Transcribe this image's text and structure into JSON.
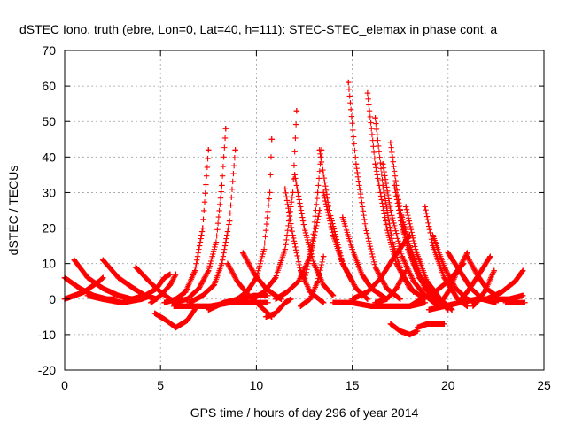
{
  "chart_data": {
    "type": "scatter",
    "title": "dSTEC Iono. truth (ebre, Lon=0, Lat=40, h=111): STEC-STEC_elemax in phase cont. a",
    "xlabel": "GPS time / hours of day 296 of year 2014",
    "ylabel": "dSTEC  / TECUs",
    "xlim": [
      0,
      25
    ],
    "ylim": [
      -20,
      70
    ],
    "xticks": [
      0,
      5,
      10,
      15,
      20,
      25
    ],
    "yticks": [
      -20,
      -10,
      0,
      10,
      20,
      30,
      40,
      50,
      60,
      70
    ],
    "grid": true,
    "marker": "+",
    "color": "#ff0000",
    "series": [
      {
        "x": [
          0.0,
          0.8,
          1.5,
          2.2,
          2.6
        ],
        "y": [
          6,
          3,
          1,
          0,
          0
        ]
      },
      {
        "x": [
          0.0,
          1.0,
          1.8,
          2.0
        ],
        "y": [
          0,
          2,
          5,
          6
        ]
      },
      {
        "x": [
          0.5,
          1.2,
          2.0,
          2.8,
          3.5
        ],
        "y": [
          11,
          6,
          3,
          1,
          0
        ]
      },
      {
        "x": [
          1.2,
          2.0,
          3.0,
          4.0,
          4.5
        ],
        "y": [
          1,
          0,
          -1,
          0,
          1
        ]
      },
      {
        "x": [
          2.0,
          2.8,
          3.6,
          4.2,
          4.8
        ],
        "y": [
          11,
          6,
          3,
          1,
          0
        ]
      },
      {
        "x": [
          3.5,
          4.2,
          4.8,
          5.2,
          5.5
        ],
        "y": [
          0,
          1,
          3,
          6,
          7
        ]
      },
      {
        "x": [
          3.7,
          4.4,
          5.0,
          5.5,
          5.8
        ],
        "y": [
          9,
          5,
          2,
          0,
          -1
        ]
      },
      {
        "x": [
          4.5,
          5.0,
          5.5,
          5.8
        ],
        "y": [
          -1,
          1,
          4,
          7
        ]
      },
      {
        "x": [
          4.7,
          5.3,
          5.8,
          6.4,
          6.9
        ],
        "y": [
          -4,
          -6,
          -8,
          -6,
          -2
        ]
      },
      {
        "x": [
          5.2,
          5.8,
          6.3,
          6.8,
          7.2,
          7.5
        ],
        "y": [
          -1,
          0,
          2,
          8,
          20,
          42
        ]
      },
      {
        "x": [
          5.6,
          6.4,
          7.0,
          7.5,
          7.9,
          8.2,
          8.4
        ],
        "y": [
          -1,
          0,
          3,
          8,
          16,
          32,
          48
        ]
      },
      {
        "x": [
          6.5,
          7.2,
          7.8,
          8.2,
          8.6,
          8.9
        ],
        "y": [
          -1,
          1,
          4,
          10,
          22,
          42
        ]
      },
      {
        "x": [
          5.7,
          6.6,
          7.6,
          8.6,
          9.6,
          10.6
        ],
        "y": [
          -2,
          -2,
          -2,
          -1,
          -1,
          -1
        ]
      },
      {
        "x": [
          7.5,
          8.3,
          9.1,
          9.9,
          10.6
        ],
        "y": [
          -3,
          -1,
          0,
          1,
          1
        ]
      },
      {
        "x": [
          8.5,
          9.0,
          9.5,
          10.0,
          10.4,
          10.7,
          10.8
        ],
        "y": [
          -1,
          0,
          2,
          6,
          14,
          30,
          45
        ]
      },
      {
        "x": [
          8.5,
          9.0,
          9.6,
          10.2,
          10.8
        ],
        "y": [
          10,
          5,
          1,
          -2,
          -5
        ]
      },
      {
        "x": [
          9.3,
          9.9,
          10.5,
          11.0,
          11.3
        ],
        "y": [
          13,
          7,
          3,
          1,
          0
        ]
      },
      {
        "x": [
          9.8,
          10.4,
          11.0,
          11.5,
          11.9,
          12.1
        ],
        "y": [
          0,
          2,
          6,
          14,
          30,
          53
        ]
      },
      {
        "x": [
          10.5,
          11.0,
          11.5,
          11.8
        ],
        "y": [
          -5,
          -4,
          -1,
          0
        ]
      },
      {
        "x": [
          11.0,
          11.6,
          12.2,
          12.8,
          13.3
        ],
        "y": [
          0,
          2,
          5,
          12,
          25
        ]
      },
      {
        "x": [
          11.5,
          11.9,
          12.3,
          12.8,
          13.5
        ],
        "y": [
          31,
          18,
          8,
          2,
          -1
        ]
      },
      {
        "x": [
          12.0,
          12.5,
          13.0,
          13.5,
          14.0
        ],
        "y": [
          35,
          20,
          10,
          4,
          1
        ]
      },
      {
        "x": [
          12.3,
          12.8,
          13.2,
          13.5
        ],
        "y": [
          -2,
          0,
          5,
          12
        ]
      },
      {
        "x": [
          12.5,
          12.9,
          13.2,
          13.4
        ],
        "y": [
          5,
          15,
          30,
          42
        ]
      },
      {
        "x": [
          13.3,
          13.8,
          14.5,
          15.2,
          15.8
        ],
        "y": [
          42,
          25,
          10,
          3,
          0
        ]
      },
      {
        "x": [
          13.5,
          14.0,
          14.5,
          15.0
        ],
        "y": [
          30,
          18,
          10,
          5
        ]
      },
      {
        "x": [
          14.0,
          15.0,
          16.0,
          17.0,
          18.0,
          18.8
        ],
        "y": [
          -1,
          -1,
          -2,
          -2,
          -2,
          -1
        ]
      },
      {
        "x": [
          14.5,
          15.0,
          15.5,
          16.0,
          16.8
        ],
        "y": [
          23,
          14,
          7,
          3,
          0
        ]
      },
      {
        "x": [
          14.8,
          15.2,
          15.7,
          16.2,
          16.8,
          17.5
        ],
        "y": [
          61,
          38,
          20,
          9,
          3,
          0
        ]
      },
      {
        "x": [
          15.0,
          15.8,
          16.5,
          17.2,
          18.0
        ],
        "y": [
          0,
          2,
          6,
          12,
          18
        ]
      },
      {
        "x": [
          15.8,
          16.2,
          16.8,
          17.3,
          18.0,
          18.8
        ],
        "y": [
          58,
          38,
          20,
          10,
          3,
          0
        ]
      },
      {
        "x": [
          16.2,
          16.6,
          17.1,
          17.6,
          18.2
        ],
        "y": [
          51,
          32,
          16,
          7,
          2
        ]
      },
      {
        "x": [
          16.2,
          16.8,
          17.3,
          17.8
        ],
        "y": [
          -1,
          0,
          3,
          8
        ]
      },
      {
        "x": [
          16.6,
          17.0,
          17.6,
          18.2,
          18.8,
          19.5
        ],
        "y": [
          38,
          25,
          12,
          5,
          1,
          -2
        ]
      },
      {
        "x": [
          17.0,
          17.4,
          17.9,
          18.5,
          19.2,
          19.8
        ],
        "y": [
          44,
          28,
          14,
          6,
          1,
          -2
        ]
      },
      {
        "x": [
          17.2,
          17.6,
          18.2,
          18.8,
          19.5
        ],
        "y": [
          32,
          20,
          10,
          3,
          -1
        ]
      },
      {
        "x": [
          17.5,
          18.0,
          18.6,
          19.3,
          20.0
        ],
        "y": [
          25,
          15,
          6,
          1,
          -3
        ]
      },
      {
        "x": [
          17.0,
          17.5,
          18.0,
          18.4
        ],
        "y": [
          -7,
          -9,
          -10,
          -9
        ]
      },
      {
        "x": [
          17.8,
          18.3,
          18.9,
          19.6,
          20.2
        ],
        "y": [
          26,
          14,
          5,
          0,
          -3
        ]
      },
      {
        "x": [
          18.0,
          18.6,
          19.3,
          20.0,
          20.8
        ],
        "y": [
          -2,
          0,
          2,
          5,
          10
        ]
      },
      {
        "x": [
          18.4,
          18.9,
          19.4,
          19.8
        ],
        "y": [
          -8,
          -7,
          -7,
          -7
        ]
      },
      {
        "x": [
          18.8,
          19.2,
          19.8,
          20.5,
          21.0
        ],
        "y": [
          26,
          15,
          6,
          0,
          -2
        ]
      },
      {
        "x": [
          19.0,
          19.8,
          20.6,
          21.5,
          22.5
        ],
        "y": [
          -3,
          -2,
          -1,
          0,
          0
        ]
      },
      {
        "x": [
          19.2,
          19.8,
          20.4,
          21.0,
          21.5
        ],
        "y": [
          18,
          9,
          3,
          0,
          -1
        ]
      },
      {
        "x": [
          19.5,
          20.0,
          20.5,
          21.0
        ],
        "y": [
          -2,
          2,
          8,
          13
        ]
      },
      {
        "x": [
          20.0,
          20.6,
          21.2,
          21.8,
          22.5
        ],
        "y": [
          13,
          8,
          3,
          0,
          -1
        ]
      },
      {
        "x": [
          20.5,
          21.0,
          21.5,
          22.2
        ],
        "y": [
          -1,
          2,
          6,
          12
        ]
      },
      {
        "x": [
          21.0,
          21.5,
          22.0,
          22.5
        ],
        "y": [
          12,
          7,
          3,
          1
        ]
      },
      {
        "x": [
          21.3,
          21.9,
          22.4
        ],
        "y": [
          -2,
          2,
          8
        ]
      },
      {
        "x": [
          22.0,
          22.8,
          23.5,
          23.9
        ],
        "y": [
          0,
          2,
          5,
          8
        ]
      },
      {
        "x": [
          22.5,
          23.2,
          23.9
        ],
        "y": [
          0,
          0,
          1
        ]
      },
      {
        "x": [
          23.0,
          23.5,
          24.0
        ],
        "y": [
          -1,
          -1,
          -1
        ]
      }
    ]
  }
}
